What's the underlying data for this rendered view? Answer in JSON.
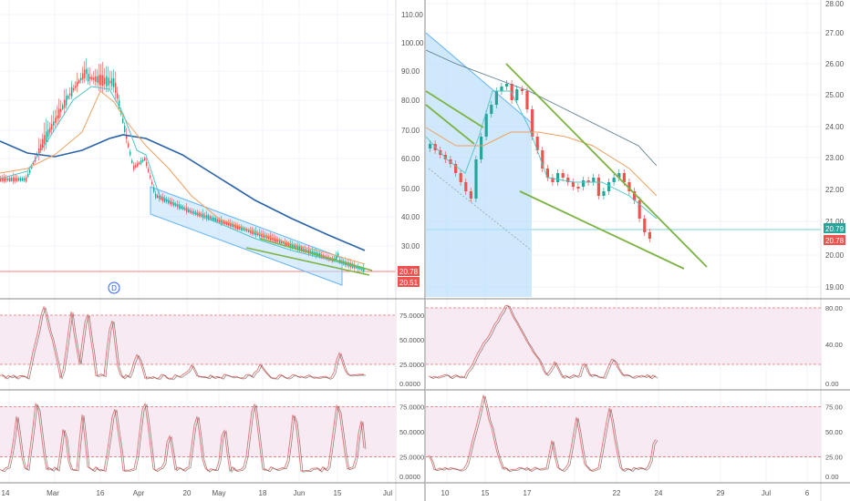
{
  "left_chart": {
    "price_axis_labels": [
      "110.00",
      "100.00",
      "90.00",
      "80.00",
      "70.00",
      "60.00",
      "50.00",
      "40.00",
      "30.00"
    ],
    "price_badges": [
      {
        "text": "20.78",
        "color": "#ef5350"
      },
      {
        "text": "20.51",
        "color": "#ef5350"
      }
    ],
    "marker_label": "D",
    "stoch_axis_labels": [
      "75.0000",
      "50.0000",
      "25.0000",
      "0.0000"
    ],
    "stoch2_axis_labels": [
      "75.0000",
      "50.0000",
      "25.0000",
      "0.0000"
    ],
    "time_axis_labels": [
      "14",
      "Mar",
      "16",
      "Apr",
      "20",
      "May",
      "18",
      "Jun",
      "15",
      "Jul"
    ]
  },
  "right_chart": {
    "price_axis_labels": [
      "28.00",
      "27.00",
      "26.00",
      "25.00",
      "24.00",
      "23.00",
      "22.00",
      "21.00",
      "20.00",
      "19.00"
    ],
    "price_badges": [
      {
        "text": "20.79",
        "color": "#26a69a"
      },
      {
        "text": "20.78",
        "color": "#ef5350"
      }
    ],
    "stoch_axis_labels": [
      "80.00",
      "40.00",
      "0.00"
    ],
    "stoch2_axis_labels": [
      "75.00",
      "50.00",
      "25.00",
      "0.00"
    ],
    "time_axis_labels": [
      "10",
      "15",
      "17",
      "22",
      "24",
      "29",
      "Jul",
      "6"
    ]
  },
  "colors": {
    "up": "#26a69a",
    "down": "#ef5350",
    "ma_long": "#2962a8",
    "ma_mid": "#f0a060",
    "ma_short": "#4fc3c7",
    "trend": "#7cb342",
    "channel": "#bbdefb",
    "stoch_band": "#f8eaf3",
    "stoch_line_fast": "#e57373",
    "stoch_line_slow": "#5d4037"
  }
}
